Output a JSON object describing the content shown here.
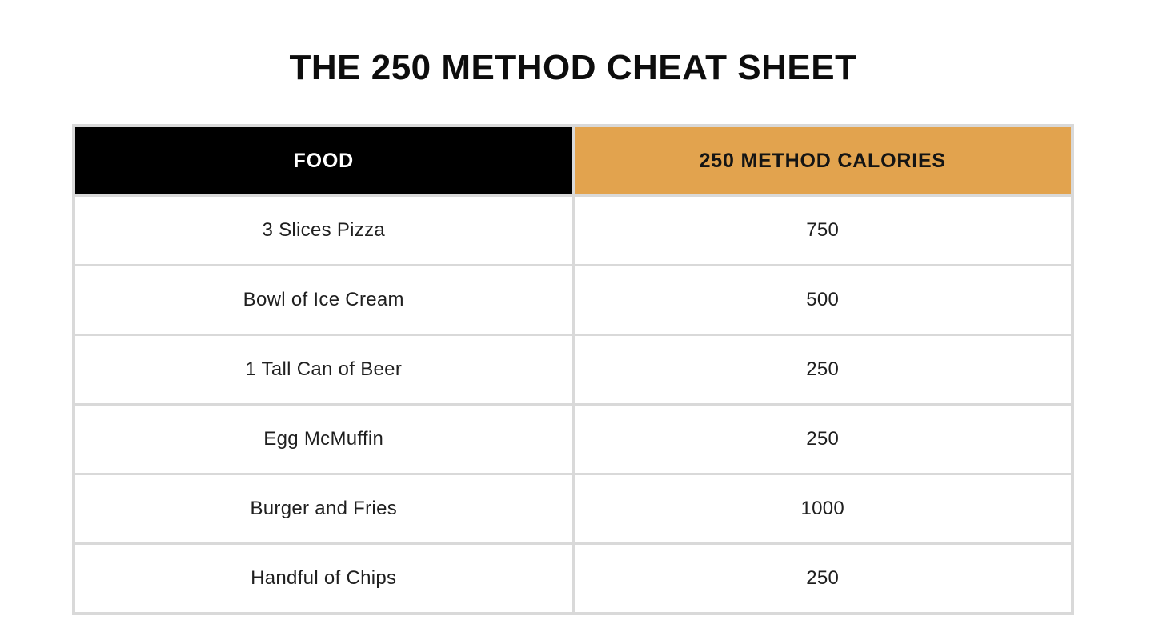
{
  "title": "THE 250 METHOD CHEAT SHEET",
  "colors": {
    "header_food_bg": "#000000",
    "header_food_text": "#ffffff",
    "header_calories_bg": "#e2a34e",
    "header_calories_text": "#141414",
    "table_border": "#d9d9d9",
    "body_text": "#1f1f1f",
    "page_bg": "#ffffff"
  },
  "table": {
    "columns": [
      {
        "label": "FOOD"
      },
      {
        "label": "250 METHOD CALORIES"
      }
    ],
    "rows": [
      {
        "food": "3 Slices Pizza",
        "calories": "750"
      },
      {
        "food": "Bowl of Ice Cream",
        "calories": "500"
      },
      {
        "food": "1 Tall Can of Beer",
        "calories": "250"
      },
      {
        "food": "Egg McMuffin",
        "calories": "250"
      },
      {
        "food": "Burger and Fries",
        "calories": "1000"
      },
      {
        "food": "Handful of Chips",
        "calories": "250"
      }
    ]
  }
}
